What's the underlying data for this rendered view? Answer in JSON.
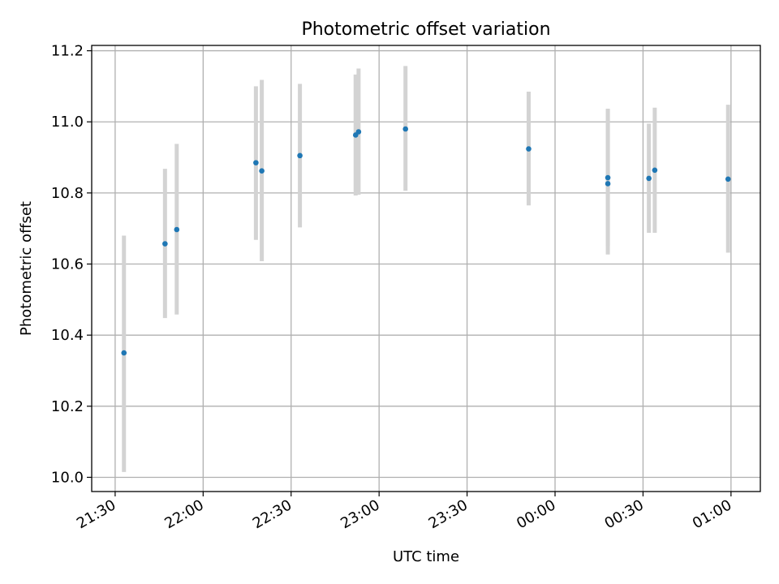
{
  "chart_data": {
    "type": "scatter",
    "title": "Photometric offset variation",
    "xlabel": "UTC time",
    "ylabel": "Photometric offset",
    "x_tick_labels": [
      "21:30",
      "22:00",
      "22:30",
      "23:00",
      "23:30",
      "00:00",
      "00:30",
      "01:00"
    ],
    "y_tick_labels": [
      "10.0",
      "10.2",
      "10.4",
      "10.6",
      "10.8",
      "11.0",
      "11.2"
    ],
    "ylim": [
      9.96,
      11.215
    ],
    "xlim": [
      "21:22",
      "01:10"
    ],
    "grid": true,
    "colors": {
      "point": "#1f77b4",
      "errorbar": "#d3d3d3",
      "grid": "#b0b0b0"
    },
    "points": [
      {
        "x": "21:33",
        "y": 10.35,
        "yerr_low": 10.015,
        "yerr_high": 10.68
      },
      {
        "x": "21:47",
        "y": 10.657,
        "yerr_low": 10.448,
        "yerr_high": 10.868
      },
      {
        "x": "21:51",
        "y": 10.697,
        "yerr_low": 10.458,
        "yerr_high": 10.938
      },
      {
        "x": "22:18",
        "y": 10.885,
        "yerr_low": 10.668,
        "yerr_high": 11.1
      },
      {
        "x": "22:20",
        "y": 10.862,
        "yerr_low": 10.608,
        "yerr_high": 11.118
      },
      {
        "x": "22:33",
        "y": 10.905,
        "yerr_low": 10.703,
        "yerr_high": 11.107
      },
      {
        "x": "22:52",
        "y": 10.963,
        "yerr_low": 10.793,
        "yerr_high": 11.133
      },
      {
        "x": "22:53",
        "y": 10.972,
        "yerr_low": 10.795,
        "yerr_high": 11.15
      },
      {
        "x": "23:09",
        "y": 10.98,
        "yerr_low": 10.806,
        "yerr_high": 11.157
      },
      {
        "x": "23:51",
        "y": 10.924,
        "yerr_low": 10.765,
        "yerr_high": 11.085
      },
      {
        "x": "00:18",
        "y": 10.826,
        "yerr_low": 10.627,
        "yerr_high": 11.035
      },
      {
        "x": "00:18",
        "y": 10.843,
        "yerr_low": 10.652,
        "yerr_high": 11.037
      },
      {
        "x": "00:32",
        "y": 10.841,
        "yerr_low": 10.688,
        "yerr_high": 10.995
      },
      {
        "x": "00:34",
        "y": 10.864,
        "yerr_low": 10.688,
        "yerr_high": 11.04
      },
      {
        "x": "00:59",
        "y": 10.839,
        "yerr_low": 10.632,
        "yerr_high": 11.048
      }
    ]
  }
}
